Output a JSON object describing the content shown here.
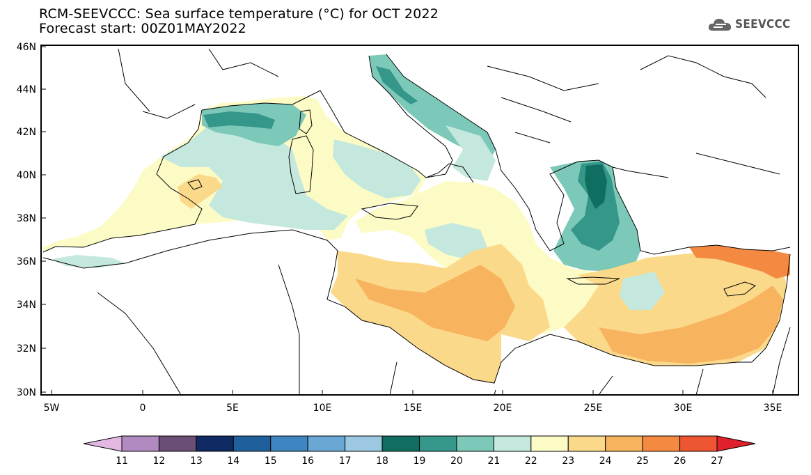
{
  "header": {
    "title": "RCM-SEEVCCC: Sea surface temperature (°C) for OCT 2022",
    "subtitle": "Forecast start: 00Z01MAY2022"
  },
  "logo": {
    "icon": "cloud-icon",
    "text": "SEEVCCC"
  },
  "map": {
    "lat_labels": [
      "46N",
      "44N",
      "42N",
      "40N",
      "38N",
      "36N",
      "34N",
      "32N",
      "30N"
    ],
    "lon_labels": [
      "5W",
      "0",
      "5E",
      "10E",
      "15E",
      "20E",
      "25E",
      "30E",
      "35E"
    ]
  },
  "colorbar": {
    "labels": [
      "11",
      "12",
      "13",
      "14",
      "15",
      "16",
      "17",
      "18",
      "19",
      "20",
      "21",
      "22",
      "23",
      "24",
      "25",
      "26",
      "27"
    ],
    "colors": [
      "#e3b9e3",
      "#b08ac0",
      "#6a4e75",
      "#102a63",
      "#1f5f9b",
      "#3d86c1",
      "#69a8d4",
      "#9dc8e2",
      "#0f6e5f",
      "#35968a",
      "#7cc9b9",
      "#c4e8de",
      "#fdfbc5",
      "#fbd98a",
      "#f7b35d",
      "#f48a42",
      "#ee5532",
      "#e0202a"
    ]
  }
}
